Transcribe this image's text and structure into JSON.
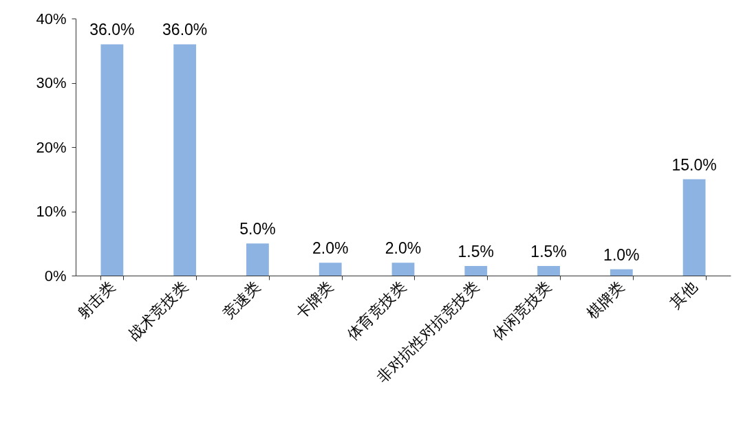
{
  "chart_data": {
    "type": "bar",
    "categories": [
      "射击类",
      "战术竞技类",
      "竞速类",
      "卡牌类",
      "体育竞技类",
      "非对抗性对抗竞技类",
      "休闲竞技类",
      "棋牌类",
      "其他"
    ],
    "values": [
      36,
      36,
      5,
      2,
      2,
      1.5,
      1.5,
      1,
      15
    ],
    "value_labels": [
      "36.0%",
      "36.0%",
      "5.0%",
      "2.0%",
      "2.0%",
      "1.5%",
      "1.5%",
      "1.0%",
      "15.0%"
    ],
    "color": "#8db3e2",
    "ylim": [
      0,
      40
    ],
    "yticks": [
      {
        "value": 0,
        "label": "0%"
      },
      {
        "value": 10,
        "label": "10%"
      },
      {
        "value": 20,
        "label": "20%"
      },
      {
        "value": 30,
        "label": "30%"
      },
      {
        "value": 40,
        "label": "40%"
      }
    ],
    "grid": false
  }
}
